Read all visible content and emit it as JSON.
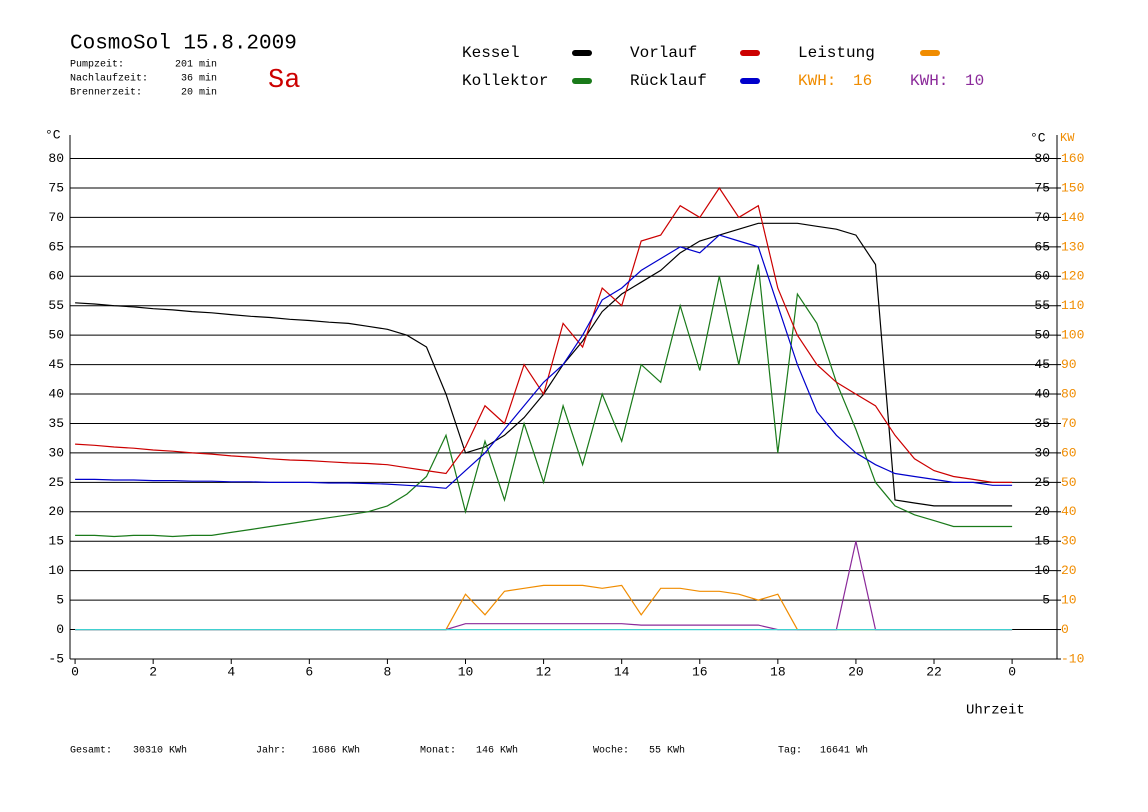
{
  "chart_data": {
    "type": "line",
    "title": "CosmoSol 15.8.2009",
    "day": "Sa",
    "info": [
      {
        "label": "Pumpzeit:",
        "value": "201 min"
      },
      {
        "label": "Nachlaufzeit:",
        "value": "36 min"
      },
      {
        "label": "Brennerzeit:",
        "value": "20 min"
      }
    ],
    "y_label": "°C",
    "y_label_right": "°C",
    "y2_label": "KW",
    "x_label": "Uhrzeit",
    "x": [
      0,
      0.5,
      1,
      1.5,
      2,
      2.5,
      3,
      3.5,
      4,
      4.5,
      5,
      5.5,
      6,
      6.5,
      7,
      7.5,
      8,
      8.5,
      9,
      9.5,
      10,
      10.5,
      11,
      11.5,
      12,
      12.5,
      13,
      13.5,
      14,
      14.5,
      15,
      15.5,
      16,
      16.5,
      17,
      17.5,
      18,
      18.5,
      19,
      19.5,
      20,
      20.5,
      21,
      21.5,
      22,
      22.5,
      23,
      23.5,
      24
    ],
    "xlim": [
      -0.13,
      25.15
    ],
    "xticks": [
      0,
      2,
      4,
      6,
      8,
      10,
      12,
      14,
      16,
      18,
      20,
      22,
      {
        "value": 24,
        "label": "0"
      }
    ],
    "ylim": [
      -5,
      84
    ],
    "yticks": [
      -5,
      0,
      5,
      10,
      15,
      20,
      25,
      30,
      35,
      40,
      45,
      50,
      55,
      60,
      65,
      70,
      75,
      80
    ],
    "yticks_right": [
      5,
      10,
      15,
      20,
      25,
      30,
      35,
      40,
      45,
      50,
      55,
      60,
      65,
      70,
      75,
      80
    ],
    "y2lim": [
      -10,
      168
    ],
    "y2ticks": [
      -10,
      0,
      10,
      20,
      30,
      40,
      50,
      60,
      70,
      80,
      90,
      100,
      110,
      120,
      130,
      140,
      150,
      160
    ],
    "grid": true,
    "series": [
      {
        "name": "Kessel",
        "color": "#000000",
        "values": [
          55.5,
          55.3,
          55,
          54.8,
          54.5,
          54.3,
          54,
          53.8,
          53.5,
          53.2,
          53,
          52.7,
          52.5,
          52.2,
          52,
          51.5,
          51,
          50,
          48,
          40,
          30,
          31,
          33,
          36,
          40,
          45,
          49,
          54,
          57,
          59,
          61,
          64,
          66,
          67,
          68,
          69,
          69,
          69,
          68.5,
          68,
          67,
          62,
          22,
          21.5,
          21,
          21,
          21,
          21,
          21
        ]
      },
      {
        "name": "Kollektor",
        "color": "#1a7a1a",
        "values": [
          16,
          16,
          15.8,
          16,
          16,
          15.8,
          16,
          16,
          16.5,
          17,
          17.5,
          18,
          18.5,
          19,
          19.5,
          20,
          21,
          23,
          26,
          33,
          20,
          32,
          22,
          35,
          25,
          38,
          28,
          40,
          32,
          45,
          42,
          55,
          44,
          60,
          45,
          62,
          30,
          57,
          52,
          42,
          34,
          25,
          21,
          19.5,
          18.5,
          17.5,
          17.5,
          17.5,
          17.5
        ]
      },
      {
        "name": "Vorlauf",
        "color": "#cc0000",
        "values": [
          31.5,
          31.3,
          31,
          30.8,
          30.5,
          30.3,
          30,
          29.8,
          29.5,
          29.3,
          29,
          28.8,
          28.7,
          28.5,
          28.3,
          28.2,
          28,
          27.5,
          27,
          26.5,
          31,
          38,
          35,
          45,
          40,
          52,
          48,
          58,
          55,
          66,
          67,
          72,
          70,
          75,
          70,
          72,
          58,
          50,
          45,
          42,
          40,
          38,
          33,
          29,
          27,
          26,
          25.5,
          25,
          25
        ]
      },
      {
        "name": "Rücklauf",
        "color": "#0000cc",
        "values": [
          25.5,
          25.5,
          25.4,
          25.4,
          25.3,
          25.3,
          25.2,
          25.2,
          25.1,
          25.1,
          25,
          25,
          25,
          24.9,
          24.9,
          24.8,
          24.7,
          24.5,
          24.3,
          24,
          27,
          30,
          34,
          38,
          42,
          45,
          50,
          56,
          58,
          61,
          63,
          65,
          64,
          67,
          66,
          65,
          55,
          45,
          37,
          33,
          30,
          28,
          26.5,
          26,
          25.5,
          25,
          25,
          24.5,
          24.5
        ]
      },
      {
        "name": "Leistung",
        "color": "#f08c00",
        "axis": "y2",
        "values": [
          0,
          0,
          0,
          0,
          0,
          0,
          0,
          0,
          0,
          0,
          0,
          0,
          0,
          0,
          0,
          0,
          0,
          0,
          0,
          0,
          12,
          5,
          13,
          14,
          15,
          15,
          15,
          14,
          15,
          5,
          14,
          14,
          13,
          13,
          12,
          10,
          12,
          0,
          0,
          0,
          0,
          0,
          0,
          0,
          0,
          0,
          0,
          0,
          0
        ]
      },
      {
        "color": "#8b2a9a",
        "axis": "y2",
        "values": [
          0,
          0,
          0,
          0,
          0,
          0,
          0,
          0,
          0,
          0,
          0,
          0,
          0,
          0,
          0,
          0,
          0,
          0,
          0,
          0,
          2,
          2,
          2,
          2,
          2,
          2,
          2,
          2,
          2,
          1.5,
          1.5,
          1.5,
          1.5,
          1.5,
          1.5,
          1.5,
          0,
          0,
          0,
          0,
          30,
          0,
          0,
          0,
          0,
          0,
          0,
          0,
          0
        ]
      },
      {
        "color": "#40d0d0",
        "x": [
          0,
          24
        ],
        "values": [
          0,
          0
        ]
      }
    ],
    "kwh": [
      {
        "label": "KWH:",
        "value": 16,
        "color": "#f08c00"
      },
      {
        "label": "KWH:",
        "value": 10,
        "color": "#8b2a9a"
      }
    ],
    "totals": [
      {
        "label": "Gesamt:",
        "value": "30310 KWh"
      },
      {
        "label": "Jahr:",
        "value": "1686 KWh"
      },
      {
        "label": "Monat:",
        "value": "146 KWh"
      },
      {
        "label": "Woche:",
        "value": "55 KWh"
      },
      {
        "label": "Tag:",
        "value": "16641 Wh"
      }
    ]
  }
}
